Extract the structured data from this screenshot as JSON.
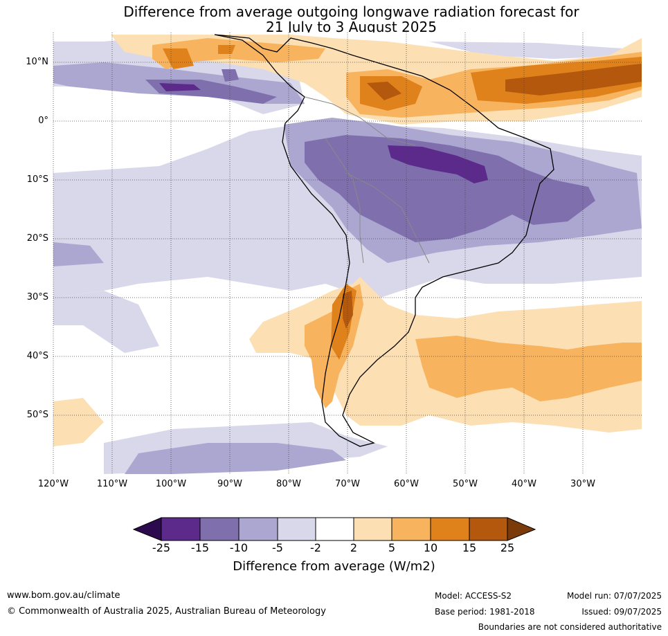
{
  "title_line1": "Difference from average outgoing longwave radiation forecast for",
  "title_line2": "21 July to 3 August 2025",
  "lat_labels": [
    "10°N",
    "0°",
    "10°S",
    "20°S",
    "30°S",
    "40°S",
    "50°S"
  ],
  "lon_labels": [
    "120°W",
    "110°W",
    "100°W",
    "90°W",
    "80°W",
    "70°W",
    "60°W",
    "50°W",
    "40°W",
    "30°W"
  ],
  "colorbar": {
    "ticks": [
      "-25",
      "-15",
      "-10",
      "-5",
      "-2",
      "2",
      "5",
      "10",
      "15",
      "25"
    ],
    "colors": [
      "#2d0a4e",
      "#5b2a8a",
      "#7f70ad",
      "#aca7d1",
      "#d8d8ea",
      "#ffffff",
      "#fddfb4",
      "#f8b35e",
      "#e0821c",
      "#b3580c",
      "#7a3a0a"
    ],
    "label": "Difference from average (W/m2)"
  },
  "footer": {
    "website": "www.bom.gov.au/climate",
    "copyright": "© Commonwealth of Australia 2025, Australian Bureau of Meteorology",
    "model": "Model: ACCESS-S2",
    "base_period": "Base period: 1981-2018",
    "model_run": "Model run: 07/07/2025",
    "issued": "Issued: 09/07/2025",
    "boundaries_note": "Boundaries are not considered authoritative"
  }
}
